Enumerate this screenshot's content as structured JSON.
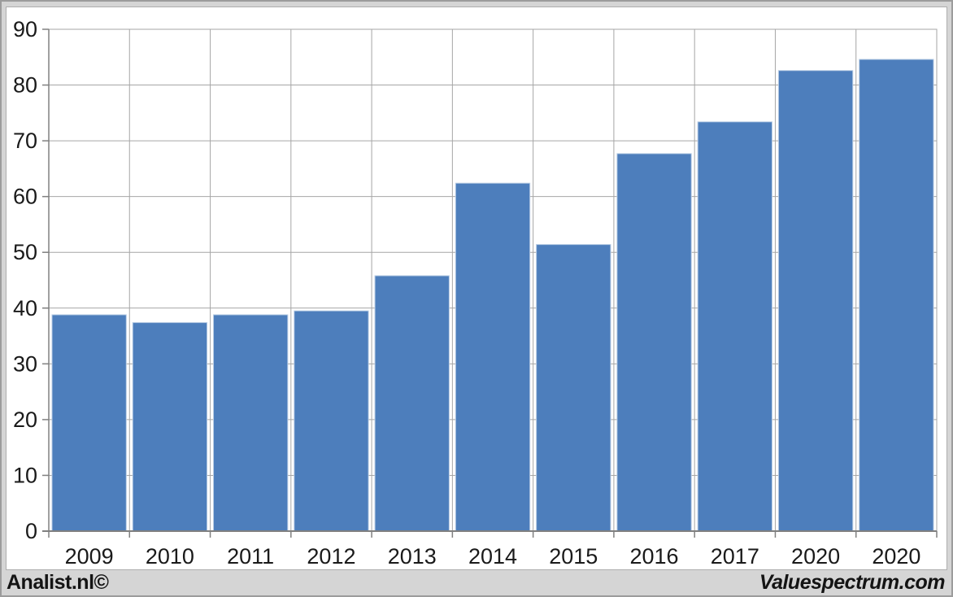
{
  "chart_data": {
    "type": "bar",
    "categories": [
      "2009",
      "2010",
      "2011",
      "2012",
      "2013",
      "2014",
      "2015",
      "2016",
      "2017",
      "2020",
      "2020"
    ],
    "values": [
      38.8,
      37.4,
      38.8,
      39.5,
      45.8,
      62.4,
      51.4,
      67.7,
      73.4,
      82.6,
      84.6
    ],
    "title": "",
    "xlabel": "",
    "ylabel": "",
    "ylim": [
      0,
      90
    ],
    "ytick_step": 10,
    "yticks": [
      0,
      10,
      20,
      30,
      40,
      50,
      60,
      70,
      80,
      90
    ],
    "grid": true,
    "legend": false,
    "colors": {
      "bar_fill": "#4d7ebc",
      "bar_edge": "#b8cce4",
      "gridline": "#a6a6a6",
      "axis": "#808080",
      "plot_background": "#ffffff",
      "page_background": "#d5d5d5",
      "label_text": "#1a1a1a"
    }
  },
  "footer": {
    "left_credit": "Analist.nl©",
    "right_credit": "Valuespectrum.com"
  }
}
